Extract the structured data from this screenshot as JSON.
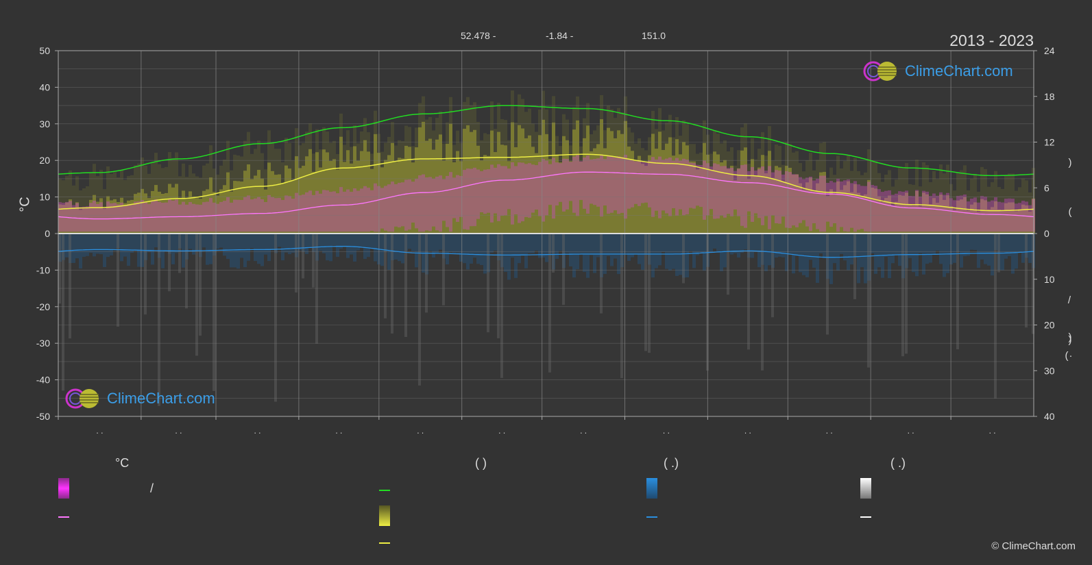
{
  "header": {
    "period": "2013 - 2023",
    "coords": {
      "lat": "52.478 -",
      "lon": "-1.84 -",
      "elev": "151.0"
    }
  },
  "axes": {
    "left_unit": "°C",
    "left_ticks": [
      "50",
      "40",
      "30",
      "20",
      "10",
      "0",
      "-10",
      "-20",
      "-30",
      "-40",
      "-50"
    ],
    "right_top_ticks": [
      "24",
      "18",
      "12",
      "6",
      "0"
    ],
    "right_bottom_ticks": [
      "10",
      "20",
      "30",
      "40"
    ],
    "right_labels": [
      ")",
      "(",
      ")",
      "/",
      ")",
      "(",
      "·"
    ],
    "month_marks": [
      ". .",
      ". .",
      ". .",
      ". .",
      ". .",
      ". .",
      ". .",
      ". .",
      ". .",
      ". .",
      ". .",
      ". ."
    ]
  },
  "brand": {
    "logo_top": "ClimeChart.com",
    "logo_bottom": "ClimeChart.com",
    "copyright": "© ClimeChart.com"
  },
  "legend": {
    "col1_title": "°C",
    "col1_range_sep": "/",
    "col2_title": "(          )",
    "col3_title": "(   .)",
    "col4_title": "(   .)"
  },
  "colors": {
    "daylight": "#22dd22",
    "sunshine": "#eeee44",
    "max_temp": "#ff77ff",
    "precip": "#2a8fe0",
    "snow": "#ffffff",
    "temp_band": "#dd44dd",
    "sun_band": "#b8b830"
  },
  "chart_data": {
    "type": "line",
    "x_months": [
      1,
      2,
      3,
      4,
      5,
      6,
      7,
      8,
      9,
      10,
      11,
      12
    ],
    "left_axis": {
      "label": "°C",
      "ylim": [
        -50,
        50
      ]
    },
    "right_axis_top": {
      "ylim": [
        0,
        24
      ]
    },
    "right_axis_bottom": {
      "ylim": [
        0,
        40
      ],
      "inverted": true
    },
    "series": [
      {
        "key": "daylight",
        "axis": "right_top",
        "values": [
          8.0,
          9.8,
          11.8,
          13.9,
          15.7,
          16.8,
          16.4,
          14.8,
          12.7,
          10.5,
          8.6,
          7.6
        ]
      },
      {
        "key": "sunshine",
        "axis": "right_top",
        "values": [
          3.4,
          4.6,
          6.2,
          8.6,
          9.8,
          10.0,
          10.4,
          9.2,
          7.6,
          5.4,
          3.8,
          3.0
        ]
      },
      {
        "key": "max_temp",
        "axis": "left",
        "values": [
          4.0,
          4.6,
          5.5,
          7.8,
          11.2,
          14.6,
          16.8,
          16.2,
          13.9,
          10.8,
          7.0,
          5.2
        ]
      },
      {
        "key": "precip",
        "axis": "right_bottom",
        "values": [
          3.5,
          3.8,
          3.5,
          2.8,
          4.3,
          4.7,
          4.5,
          4.5,
          3.8,
          5.2,
          4.6,
          4.3
        ]
      }
    ],
    "grid": true
  }
}
